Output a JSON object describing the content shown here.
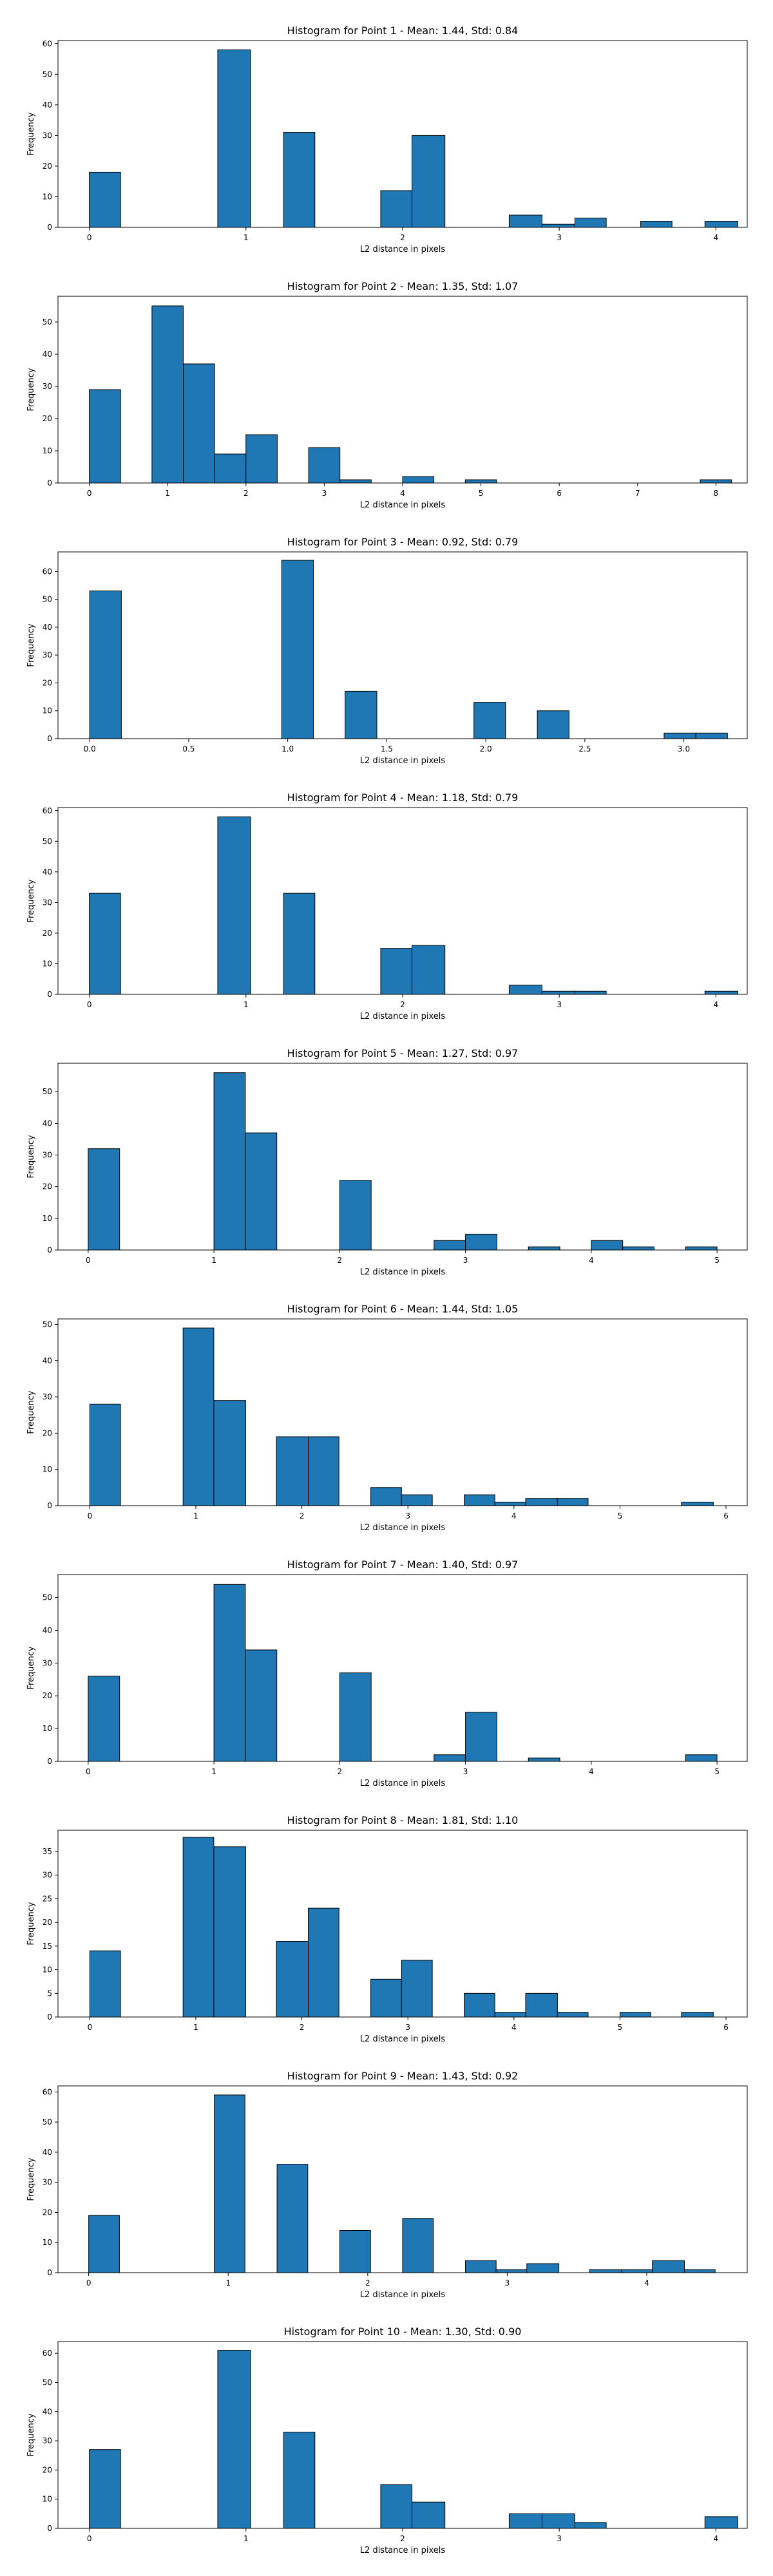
{
  "figure": {
    "bar_color": "#1f77b4",
    "edge_color": "#000000",
    "background": "#ffffff"
  },
  "chart_data": [
    {
      "type": "bar",
      "title": "Histogram for Point 1 - Mean: 1.44, Std: 0.84",
      "xlabel": "L2 distance in pixels",
      "ylabel": "Frequency",
      "xlim": [
        -0.2,
        4.2
      ],
      "ylim": [
        0,
        61
      ],
      "xticks": [
        {
          "v": 0,
          "label": "0"
        },
        {
          "v": 1,
          "label": "1"
        },
        {
          "v": 2,
          "label": "2"
        },
        {
          "v": 3,
          "label": "3"
        },
        {
          "v": 4,
          "label": "4"
        }
      ],
      "yticks": [
        {
          "v": 0,
          "label": "0"
        },
        {
          "v": 10,
          "label": "10"
        },
        {
          "v": 20,
          "label": "20"
        },
        {
          "v": 30,
          "label": "30"
        },
        {
          "v": 40,
          "label": "40"
        },
        {
          "v": 50,
          "label": "50"
        },
        {
          "v": 60,
          "label": "60"
        }
      ],
      "bins": [
        [
          0,
          0.2,
          18
        ],
        [
          0.82,
          1.03,
          58
        ],
        [
          1.24,
          1.44,
          31
        ],
        [
          1.86,
          2.06,
          12
        ],
        [
          2.06,
          2.27,
          30
        ],
        [
          2.68,
          2.89,
          4
        ],
        [
          2.89,
          3.1,
          1
        ],
        [
          3.1,
          3.3,
          3
        ],
        [
          3.52,
          3.72,
          2
        ],
        [
          3.93,
          4.14,
          2
        ]
      ]
    },
    {
      "type": "bar",
      "title": "Histogram for Point 2 - Mean: 1.35, Std: 1.07",
      "xlabel": "L2 distance in pixels",
      "ylabel": "Frequency",
      "xlim": [
        -0.4,
        8.4
      ],
      "ylim": [
        0,
        58
      ],
      "xticks": [
        {
          "v": 0,
          "label": "0"
        },
        {
          "v": 1,
          "label": "1"
        },
        {
          "v": 2,
          "label": "2"
        },
        {
          "v": 3,
          "label": "3"
        },
        {
          "v": 4,
          "label": "4"
        },
        {
          "v": 5,
          "label": "5"
        },
        {
          "v": 6,
          "label": "6"
        },
        {
          "v": 7,
          "label": "7"
        },
        {
          "v": 8,
          "label": "8"
        }
      ],
      "yticks": [
        {
          "v": 0,
          "label": "0"
        },
        {
          "v": 10,
          "label": "10"
        },
        {
          "v": 20,
          "label": "20"
        },
        {
          "v": 30,
          "label": "30"
        },
        {
          "v": 40,
          "label": "40"
        },
        {
          "v": 50,
          "label": "50"
        }
      ],
      "bins": [
        [
          0,
          0.4,
          29
        ],
        [
          0.8,
          1.2,
          55
        ],
        [
          1.2,
          1.6,
          37
        ],
        [
          1.6,
          2.0,
          9
        ],
        [
          2.0,
          2.4,
          15
        ],
        [
          2.8,
          3.2,
          11
        ],
        [
          3.2,
          3.6,
          1
        ],
        [
          3.6,
          4.0,
          0
        ],
        [
          4.0,
          4.4,
          2
        ],
        [
          4.8,
          5.2,
          1
        ],
        [
          7.8,
          8.2,
          1
        ]
      ]
    },
    {
      "type": "bar",
      "title": "Histogram for Point 3 - Mean: 0.92, Std: 0.79",
      "xlabel": "L2 distance in pixels",
      "ylabel": "Frequency",
      "xlim": [
        -0.16,
        3.32
      ],
      "ylim": [
        0,
        67
      ],
      "xticks": [
        {
          "v": 0,
          "label": "0.0"
        },
        {
          "v": 0.5,
          "label": "0.5"
        },
        {
          "v": 1,
          "label": "1.0"
        },
        {
          "v": 1.5,
          "label": "1.5"
        },
        {
          "v": 2,
          "label": "2.0"
        },
        {
          "v": 2.5,
          "label": "2.5"
        },
        {
          "v": 3,
          "label": "3.0"
        }
      ],
      "yticks": [
        {
          "v": 0,
          "label": "0"
        },
        {
          "v": 10,
          "label": "10"
        },
        {
          "v": 20,
          "label": "20"
        },
        {
          "v": 30,
          "label": "30"
        },
        {
          "v": 40,
          "label": "40"
        },
        {
          "v": 50,
          "label": "50"
        },
        {
          "v": 60,
          "label": "60"
        }
      ],
      "bins": [
        [
          0,
          0.16,
          53
        ],
        [
          0.97,
          1.13,
          64
        ],
        [
          1.29,
          1.45,
          17
        ],
        [
          1.94,
          2.1,
          13
        ],
        [
          2.26,
          2.42,
          10
        ],
        [
          2.9,
          3.06,
          2
        ],
        [
          3.06,
          3.22,
          2
        ]
      ]
    },
    {
      "type": "bar",
      "title": "Histogram for Point 4 - Mean: 1.18, Std: 0.79",
      "xlabel": "L2 distance in pixels",
      "ylabel": "Frequency",
      "xlim": [
        -0.2,
        4.2
      ],
      "ylim": [
        0,
        61
      ],
      "xticks": [
        {
          "v": 0,
          "label": "0"
        },
        {
          "v": 1,
          "label": "1"
        },
        {
          "v": 2,
          "label": "2"
        },
        {
          "v": 3,
          "label": "3"
        },
        {
          "v": 4,
          "label": "4"
        }
      ],
      "yticks": [
        {
          "v": 0,
          "label": "0"
        },
        {
          "v": 10,
          "label": "10"
        },
        {
          "v": 20,
          "label": "20"
        },
        {
          "v": 30,
          "label": "30"
        },
        {
          "v": 40,
          "label": "40"
        },
        {
          "v": 50,
          "label": "50"
        },
        {
          "v": 60,
          "label": "60"
        }
      ],
      "bins": [
        [
          0,
          0.2,
          33
        ],
        [
          0.82,
          1.03,
          58
        ],
        [
          1.24,
          1.44,
          33
        ],
        [
          1.86,
          2.06,
          15
        ],
        [
          2.06,
          2.27,
          16
        ],
        [
          2.68,
          2.89,
          3
        ],
        [
          2.89,
          3.1,
          1
        ],
        [
          3.1,
          3.3,
          1
        ],
        [
          3.93,
          4.14,
          1
        ]
      ]
    },
    {
      "type": "bar",
      "title": "Histogram for Point 5 - Mean: 1.27, Std: 0.97",
      "xlabel": "L2 distance in pixels",
      "ylabel": "Frequency",
      "xlim": [
        -0.24,
        5.24
      ],
      "ylim": [
        0,
        59
      ],
      "xticks": [
        {
          "v": 0,
          "label": "0"
        },
        {
          "v": 1,
          "label": "1"
        },
        {
          "v": 2,
          "label": "2"
        },
        {
          "v": 3,
          "label": "3"
        },
        {
          "v": 4,
          "label": "4"
        },
        {
          "v": 5,
          "label": "5"
        }
      ],
      "yticks": [
        {
          "v": 0,
          "label": "0"
        },
        {
          "v": 10,
          "label": "10"
        },
        {
          "v": 20,
          "label": "20"
        },
        {
          "v": 30,
          "label": "30"
        },
        {
          "v": 40,
          "label": "40"
        },
        {
          "v": 50,
          "label": "50"
        }
      ],
      "bins": [
        [
          0,
          0.25,
          32
        ],
        [
          1.0,
          1.25,
          56
        ],
        [
          1.25,
          1.5,
          37
        ],
        [
          2.0,
          2.25,
          22
        ],
        [
          2.75,
          3.0,
          3
        ],
        [
          3.0,
          3.25,
          5
        ],
        [
          3.5,
          3.75,
          1
        ],
        [
          4.0,
          4.25,
          3
        ],
        [
          4.25,
          4.5,
          1
        ],
        [
          4.75,
          5.0,
          1
        ]
      ]
    },
    {
      "type": "bar",
      "title": "Histogram for Point 6 - Mean: 1.44, Std: 1.05",
      "xlabel": "L2 distance in pixels",
      "ylabel": "Frequency",
      "xlim": [
        -0.3,
        6.2
      ],
      "ylim": [
        0,
        51.5
      ],
      "xticks": [
        {
          "v": 0,
          "label": "0"
        },
        {
          "v": 1,
          "label": "1"
        },
        {
          "v": 2,
          "label": "2"
        },
        {
          "v": 3,
          "label": "3"
        },
        {
          "v": 4,
          "label": "4"
        },
        {
          "v": 5,
          "label": "5"
        },
        {
          "v": 6,
          "label": "6"
        }
      ],
      "yticks": [
        {
          "v": 0,
          "label": "0"
        },
        {
          "v": 10,
          "label": "10"
        },
        {
          "v": 20,
          "label": "20"
        },
        {
          "v": 30,
          "label": "30"
        },
        {
          "v": 40,
          "label": "40"
        },
        {
          "v": 50,
          "label": "50"
        }
      ],
      "bins": [
        [
          0,
          0.29,
          28
        ],
        [
          0.88,
          1.17,
          49
        ],
        [
          1.17,
          1.47,
          29
        ],
        [
          1.76,
          2.06,
          19
        ],
        [
          2.06,
          2.35,
          19
        ],
        [
          2.65,
          2.94,
          5
        ],
        [
          2.94,
          3.23,
          3
        ],
        [
          3.53,
          3.82,
          3
        ],
        [
          3.82,
          4.11,
          1
        ],
        [
          4.11,
          4.41,
          2
        ],
        [
          4.41,
          4.7,
          2
        ],
        [
          5.58,
          5.88,
          1
        ]
      ]
    },
    {
      "type": "bar",
      "title": "Histogram for Point 7 - Mean: 1.40, Std: 0.97",
      "xlabel": "L2 distance in pixels",
      "ylabel": "Frequency",
      "xlim": [
        -0.24,
        5.24
      ],
      "ylim": [
        0,
        57
      ],
      "xticks": [
        {
          "v": 0,
          "label": "0"
        },
        {
          "v": 1,
          "label": "1"
        },
        {
          "v": 2,
          "label": "2"
        },
        {
          "v": 3,
          "label": "3"
        },
        {
          "v": 4,
          "label": "4"
        },
        {
          "v": 5,
          "label": "5"
        }
      ],
      "yticks": [
        {
          "v": 0,
          "label": "0"
        },
        {
          "v": 10,
          "label": "10"
        },
        {
          "v": 20,
          "label": "20"
        },
        {
          "v": 30,
          "label": "30"
        },
        {
          "v": 40,
          "label": "40"
        },
        {
          "v": 50,
          "label": "50"
        }
      ],
      "bins": [
        [
          0,
          0.25,
          26
        ],
        [
          1.0,
          1.25,
          54
        ],
        [
          1.25,
          1.5,
          34
        ],
        [
          2.0,
          2.25,
          27
        ],
        [
          2.75,
          3.0,
          2
        ],
        [
          3.0,
          3.25,
          15
        ],
        [
          3.5,
          3.75,
          1
        ],
        [
          4.75,
          5.0,
          2
        ]
      ]
    },
    {
      "type": "bar",
      "title": "Histogram for Point 8 - Mean: 1.81, Std: 1.10",
      "xlabel": "L2 distance in pixels",
      "ylabel": "Frequency",
      "xlim": [
        -0.3,
        6.2
      ],
      "ylim": [
        0,
        39.5
      ],
      "xticks": [
        {
          "v": 0,
          "label": "0"
        },
        {
          "v": 1,
          "label": "1"
        },
        {
          "v": 2,
          "label": "2"
        },
        {
          "v": 3,
          "label": "3"
        },
        {
          "v": 4,
          "label": "4"
        },
        {
          "v": 5,
          "label": "5"
        },
        {
          "v": 6,
          "label": "6"
        }
      ],
      "yticks": [
        {
          "v": 0,
          "label": "0"
        },
        {
          "v": 5,
          "label": "5"
        },
        {
          "v": 10,
          "label": "10"
        },
        {
          "v": 15,
          "label": "15"
        },
        {
          "v": 20,
          "label": "20"
        },
        {
          "v": 25,
          "label": "25"
        },
        {
          "v": 30,
          "label": "30"
        },
        {
          "v": 35,
          "label": "35"
        }
      ],
      "bins": [
        [
          0,
          0.29,
          14
        ],
        [
          0.88,
          1.17,
          38
        ],
        [
          1.17,
          1.47,
          36
        ],
        [
          1.76,
          2.06,
          16
        ],
        [
          2.06,
          2.35,
          23
        ],
        [
          2.65,
          2.94,
          8
        ],
        [
          2.94,
          3.23,
          12
        ],
        [
          3.53,
          3.82,
          5
        ],
        [
          3.82,
          4.11,
          1
        ],
        [
          4.11,
          4.41,
          5
        ],
        [
          4.41,
          4.7,
          1
        ],
        [
          5.0,
          5.29,
          1
        ],
        [
          5.58,
          5.88,
          1
        ]
      ]
    },
    {
      "type": "bar",
      "title": "Histogram for Point 9 - Mean: 1.43, Std: 0.92",
      "xlabel": "L2 distance in pixels",
      "ylabel": "Frequency",
      "xlim": [
        -0.22,
        4.72
      ],
      "ylim": [
        0,
        62
      ],
      "xticks": [
        {
          "v": 0,
          "label": "0"
        },
        {
          "v": 1,
          "label": "1"
        },
        {
          "v": 2,
          "label": "2"
        },
        {
          "v": 3,
          "label": "3"
        },
        {
          "v": 4,
          "label": "4"
        }
      ],
      "yticks": [
        {
          "v": 0,
          "label": "0"
        },
        {
          "v": 10,
          "label": "10"
        },
        {
          "v": 20,
          "label": "20"
        },
        {
          "v": 30,
          "label": "30"
        },
        {
          "v": 40,
          "label": "40"
        },
        {
          "v": 50,
          "label": "50"
        },
        {
          "v": 60,
          "label": "60"
        }
      ],
      "bins": [
        [
          0,
          0.22,
          19
        ],
        [
          0.9,
          1.12,
          59
        ],
        [
          1.35,
          1.57,
          36
        ],
        [
          1.8,
          2.02,
          14
        ],
        [
          2.25,
          2.47,
          18
        ],
        [
          2.7,
          2.92,
          4
        ],
        [
          2.92,
          3.14,
          1
        ],
        [
          3.14,
          3.37,
          3
        ],
        [
          3.59,
          3.82,
          1
        ],
        [
          3.82,
          4.04,
          1
        ],
        [
          4.04,
          4.27,
          4
        ],
        [
          4.27,
          4.49,
          1
        ]
      ]
    },
    {
      "type": "bar",
      "title": "Histogram for Point 10 - Mean: 1.30, Std: 0.90",
      "xlabel": "L2 distance in pixels",
      "ylabel": "Frequency",
      "xlim": [
        -0.2,
        4.2
      ],
      "ylim": [
        0,
        64
      ],
      "xticks": [
        {
          "v": 0,
          "label": "0"
        },
        {
          "v": 1,
          "label": "1"
        },
        {
          "v": 2,
          "label": "2"
        },
        {
          "v": 3,
          "label": "3"
        },
        {
          "v": 4,
          "label": "4"
        }
      ],
      "yticks": [
        {
          "v": 0,
          "label": "0"
        },
        {
          "v": 10,
          "label": "10"
        },
        {
          "v": 20,
          "label": "20"
        },
        {
          "v": 30,
          "label": "30"
        },
        {
          "v": 40,
          "label": "40"
        },
        {
          "v": 50,
          "label": "50"
        },
        {
          "v": 60,
          "label": "60"
        }
      ],
      "bins": [
        [
          0,
          0.2,
          27
        ],
        [
          0.82,
          1.03,
          61
        ],
        [
          1.24,
          1.44,
          33
        ],
        [
          1.86,
          2.06,
          15
        ],
        [
          2.06,
          2.27,
          9
        ],
        [
          2.68,
          2.89,
          5
        ],
        [
          2.89,
          3.1,
          5
        ],
        [
          3.1,
          3.3,
          2
        ],
        [
          3.93,
          4.14,
          4
        ]
      ]
    }
  ]
}
